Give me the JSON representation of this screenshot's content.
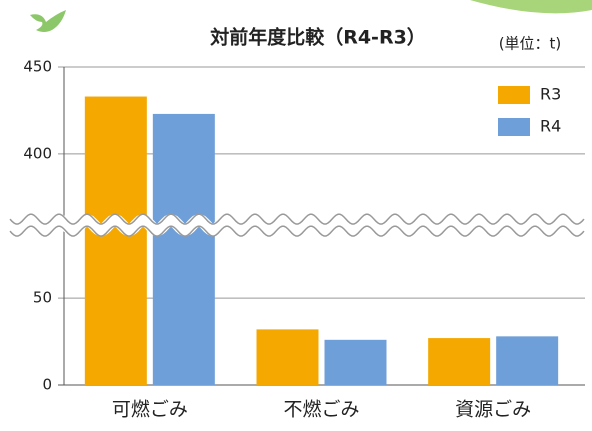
{
  "chart_data": {
    "type": "bar",
    "title": "対前年度比較（R4-R3）",
    "unit": "(単位：t)",
    "categories": [
      "可燃ごみ",
      "不燃ごみ",
      "資源ごみ"
    ],
    "series": [
      {
        "name": "R3",
        "color": "#f5a800",
        "values": [
          433,
          32,
          27
        ]
      },
      {
        "name": "R4",
        "color": "#6f9fd8",
        "values": [
          423,
          26,
          28
        ]
      }
    ],
    "ylim": [
      0,
      450
    ],
    "ybreak": [
      92,
      359
    ],
    "yticks": [
      0,
      50,
      400,
      450
    ],
    "grid": true,
    "legend": "top-right"
  }
}
